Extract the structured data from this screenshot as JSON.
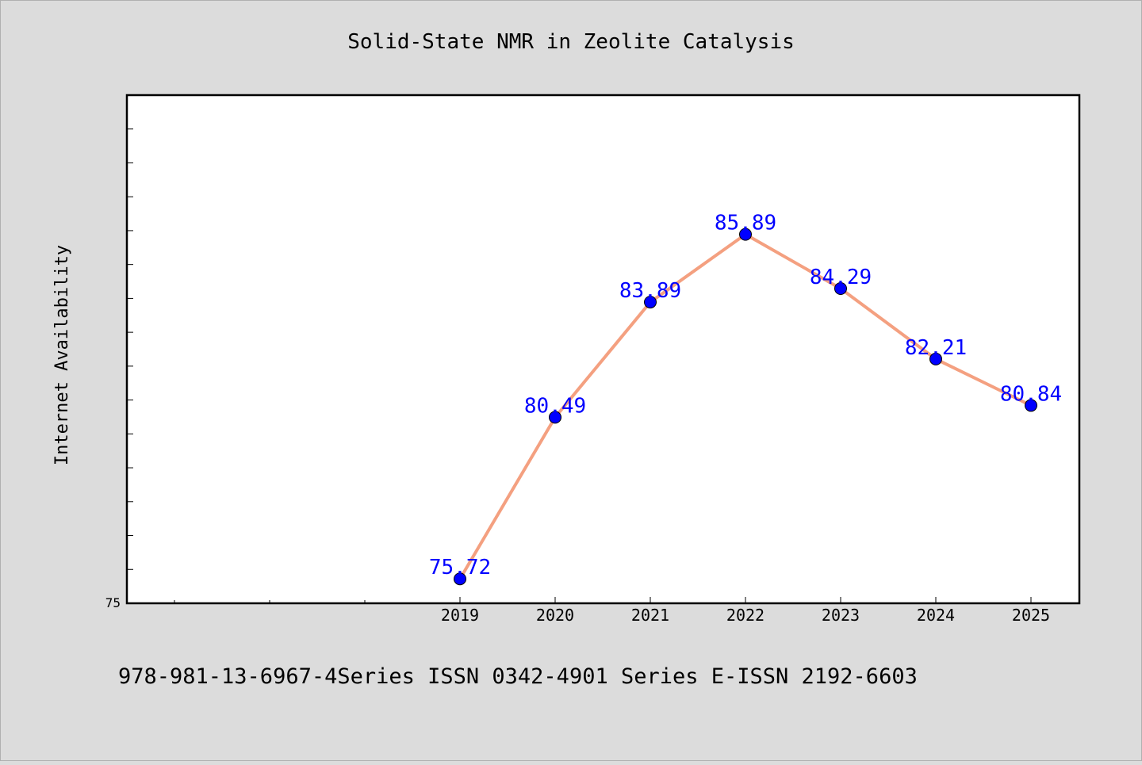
{
  "chart_data": {
    "type": "line",
    "title": "Solid-State NMR in Zeolite Catalysis",
    "xlabel": "",
    "ylabel": "Internet Availability",
    "categories": [
      "2019",
      "2020",
      "2021",
      "2022",
      "2023",
      "2024",
      "2025"
    ],
    "series": [
      {
        "values": [
          75.72,
          80.49,
          83.89,
          85.89,
          84.29,
          82.21,
          80.84
        ],
        "data_labels": [
          "75.72",
          "80.49",
          "83.89",
          "85.89",
          "84.29",
          "82.21",
          "80.84"
        ]
      }
    ],
    "ylim": [
      75,
      90
    ],
    "y_tick_labels": [
      "75"
    ],
    "grid": false,
    "legend": "none",
    "colors": {
      "line": "#f4a080",
      "marker": "#0000ff",
      "data_label": "#0000ff",
      "background": "#dcdcdc",
      "plot_background": "#ffffff"
    }
  },
  "footer": {
    "text": "978-981-13-6967-4Series ISSN 0342-4901 Series E-ISSN 2192-6603"
  }
}
